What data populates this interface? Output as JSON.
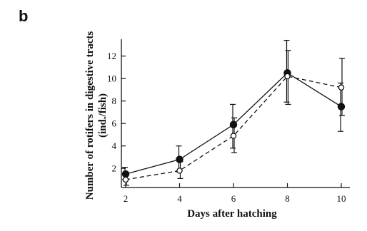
{
  "panel_label": "b",
  "chart_data": {
    "type": "line",
    "xlabel": "Days after hatching",
    "ylabel_line1": "Number of rotifers in digestive tracts",
    "ylabel_line2": "(ind./fish)",
    "x": [
      2,
      4,
      6,
      8,
      10
    ],
    "x_ticks": [
      2,
      4,
      6,
      8,
      10
    ],
    "y_ticks": [
      2,
      4,
      6,
      8,
      10,
      12
    ],
    "xlim": [
      2,
      10
    ],
    "ylim": [
      0.3,
      13.5
    ],
    "grid": false,
    "legend": "none",
    "series": [
      {
        "marker": "filled-circle",
        "line": "solid",
        "color": "#111111",
        "values": [
          1.5,
          2.8,
          5.9,
          10.5,
          7.5
        ],
        "err_low": [
          1.0,
          1.7,
          3.8,
          7.9,
          5.3
        ],
        "err_high": [
          2.1,
          4.0,
          7.7,
          13.4,
          9.6
        ]
      },
      {
        "marker": "open-circle",
        "line": "dashed",
        "color": "#111111",
        "values": [
          1.0,
          1.8,
          4.9,
          10.2,
          9.2
        ],
        "err_low": [
          0.5,
          1.1,
          3.4,
          7.7,
          6.7
        ],
        "err_high": [
          1.6,
          2.6,
          6.5,
          12.5,
          11.8
        ]
      }
    ]
  }
}
